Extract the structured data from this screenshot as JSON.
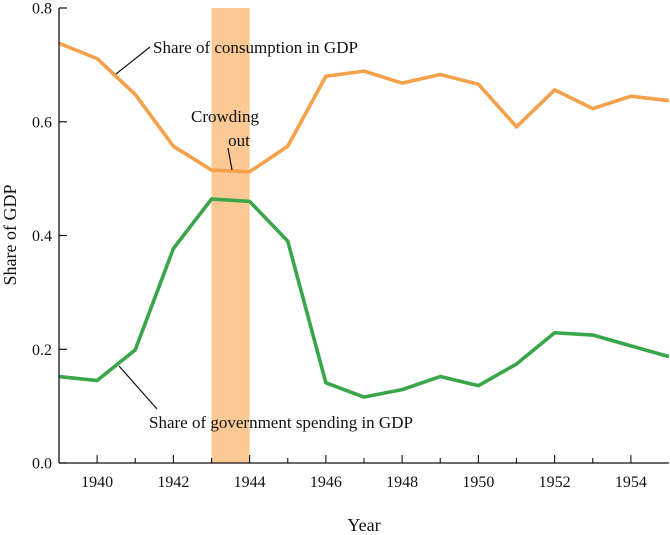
{
  "chart_data": {
    "type": "line",
    "xlabel": "Year",
    "ylabel": "Share of GDP",
    "xlim": [
      1939,
      1955
    ],
    "ylim": [
      0,
      0.8
    ],
    "x_ticks": [
      1940,
      1942,
      1944,
      1946,
      1948,
      1950,
      1952,
      1954
    ],
    "x_tick_labels": [
      "1940",
      "1942",
      "1944",
      "1946",
      "1948",
      "1950",
      "1952",
      "1954"
    ],
    "y_ticks": [
      0,
      0.2,
      0.4,
      0.6,
      0.8
    ],
    "y_tick_labels": [
      "0.0",
      "0.2",
      "0.4",
      "0.6",
      "0.8"
    ],
    "x": [
      1939,
      1940,
      1941,
      1942,
      1943,
      1944,
      1945,
      1946,
      1947,
      1948,
      1949,
      1950,
      1951,
      1952,
      1953,
      1954,
      1955
    ],
    "series": [
      {
        "name": "Share of consumption in GDP",
        "color": "#f5a04a",
        "values": [
          0.738,
          0.711,
          0.648,
          0.557,
          0.515,
          0.512,
          0.557,
          0.68,
          0.689,
          0.668,
          0.683,
          0.666,
          0.591,
          0.656,
          0.623,
          0.645,
          0.637
        ]
      },
      {
        "name": "Share of government spending in GDP",
        "color": "#3aa64a",
        "values": [
          0.152,
          0.145,
          0.199,
          0.377,
          0.464,
          0.46,
          0.39,
          0.141,
          0.116,
          0.129,
          0.152,
          0.136,
          0.174,
          0.229,
          0.225,
          0.206,
          0.187
        ]
      }
    ],
    "shaded_region": {
      "from": 1943,
      "to": 1944,
      "color": "#fcc894"
    },
    "annotations": {
      "consumption_label": "Share of consumption in GDP",
      "government_label": "Share of government spending in GDP",
      "crowding_line1": "Crowding",
      "crowding_line2": "out"
    }
  }
}
